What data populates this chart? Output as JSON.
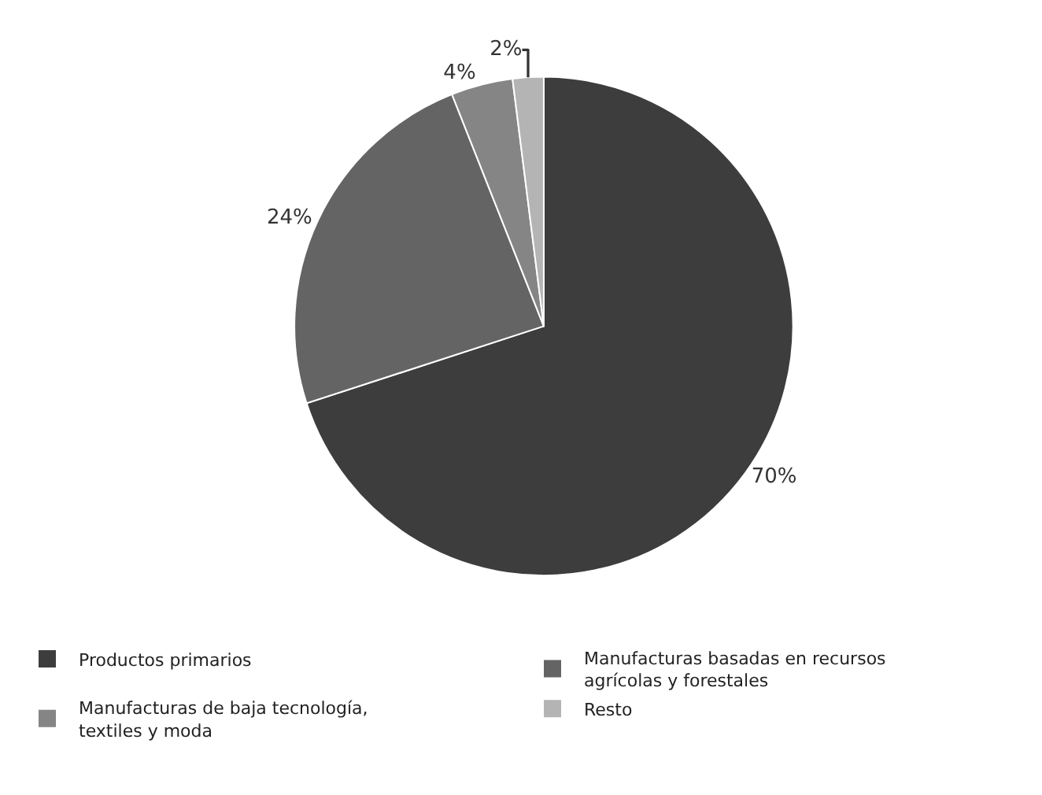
{
  "chart_data": {
    "type": "pie",
    "categories": [
      "Productos primarios",
      "Manufacturas basadas en recursos agrícolas y forestales",
      "Manufacturas de baja tecnología, textiles y moda",
      "Resto"
    ],
    "values": [
      70,
      24,
      4,
      2
    ],
    "colors": [
      "#3d3d3d",
      "#646464",
      "#858585",
      "#b4b4b4"
    ],
    "value_labels": [
      "70%",
      "24%",
      "4%",
      "2%"
    ],
    "legend": "bottom"
  }
}
